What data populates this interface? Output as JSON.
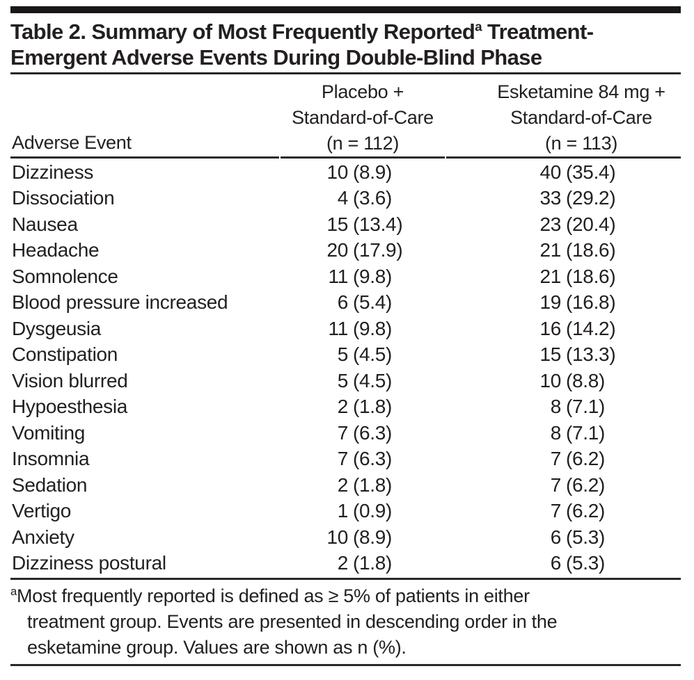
{
  "title": {
    "line1_main": "Table 2. Summary of Most Frequently Reported",
    "line1_sup": "a",
    "line1_rest": " Treatment-",
    "line2": "Emergent Adverse Events During Double-Blind Phase"
  },
  "table": {
    "col1_header": "Adverse Event",
    "col2_header": {
      "line1": "Placebo +",
      "line2": "Standard-of-Care",
      "line3": "(n = 112)"
    },
    "col3_header": {
      "line1": "Esketamine 84 mg +",
      "line2": "Standard-of-Care",
      "line3": "(n = 113)"
    },
    "rows": [
      {
        "event": "Dizziness",
        "placebo_n": "10",
        "placebo_pct": "(8.9)",
        "esketamine_n": "40",
        "esketamine_pct": "(35.4)"
      },
      {
        "event": "Dissociation",
        "placebo_n": "4",
        "placebo_pct": "(3.6)",
        "esketamine_n": "33",
        "esketamine_pct": "(29.2)"
      },
      {
        "event": "Nausea",
        "placebo_n": "15",
        "placebo_pct": "(13.4)",
        "esketamine_n": "23",
        "esketamine_pct": "(20.4)"
      },
      {
        "event": "Headache",
        "placebo_n": "20",
        "placebo_pct": "(17.9)",
        "esketamine_n": "21",
        "esketamine_pct": "(18.6)"
      },
      {
        "event": "Somnolence",
        "placebo_n": "11",
        "placebo_pct": "(9.8)",
        "esketamine_n": "21",
        "esketamine_pct": "(18.6)"
      },
      {
        "event": "Blood pressure increased",
        "placebo_n": "6",
        "placebo_pct": "(5.4)",
        "esketamine_n": "19",
        "esketamine_pct": "(16.8)"
      },
      {
        "event": "Dysgeusia",
        "placebo_n": "11",
        "placebo_pct": "(9.8)",
        "esketamine_n": "16",
        "esketamine_pct": "(14.2)"
      },
      {
        "event": "Constipation",
        "placebo_n": "5",
        "placebo_pct": "(4.5)",
        "esketamine_n": "15",
        "esketamine_pct": "(13.3)"
      },
      {
        "event": "Vision blurred",
        "placebo_n": "5",
        "placebo_pct": "(4.5)",
        "esketamine_n": "10",
        "esketamine_pct": "(8.8)"
      },
      {
        "event": "Hypoesthesia",
        "placebo_n": "2",
        "placebo_pct": "(1.8)",
        "esketamine_n": "8",
        "esketamine_pct": "(7.1)"
      },
      {
        "event": "Vomiting",
        "placebo_n": "7",
        "placebo_pct": "(6.3)",
        "esketamine_n": "8",
        "esketamine_pct": "(7.1)"
      },
      {
        "event": "Insomnia",
        "placebo_n": "7",
        "placebo_pct": "(6.3)",
        "esketamine_n": "7",
        "esketamine_pct": "(6.2)"
      },
      {
        "event": "Sedation",
        "placebo_n": "2",
        "placebo_pct": "(1.8)",
        "esketamine_n": "7",
        "esketamine_pct": "(6.2)"
      },
      {
        "event": "Vertigo",
        "placebo_n": "1",
        "placebo_pct": "(0.9)",
        "esketamine_n": "7",
        "esketamine_pct": "(6.2)"
      },
      {
        "event": "Anxiety",
        "placebo_n": "10",
        "placebo_pct": "(8.9)",
        "esketamine_n": "6",
        "esketamine_pct": "(5.3)"
      },
      {
        "event": "Dizziness postural",
        "placebo_n": "2",
        "placebo_pct": "(1.8)",
        "esketamine_n": "6",
        "esketamine_pct": "(5.3)"
      }
    ]
  },
  "footnote": {
    "sup": "a",
    "line1": "Most frequently reported is defined as ≥ 5% of patients in either",
    "line2": "treatment group. Events are presented in descending order in the",
    "line3": "esketamine group. Values are shown as n (%)."
  },
  "colors": {
    "text": "#231f20",
    "rule": "#2b2728",
    "top_bar": "#1a1718",
    "background": "#ffffff"
  }
}
